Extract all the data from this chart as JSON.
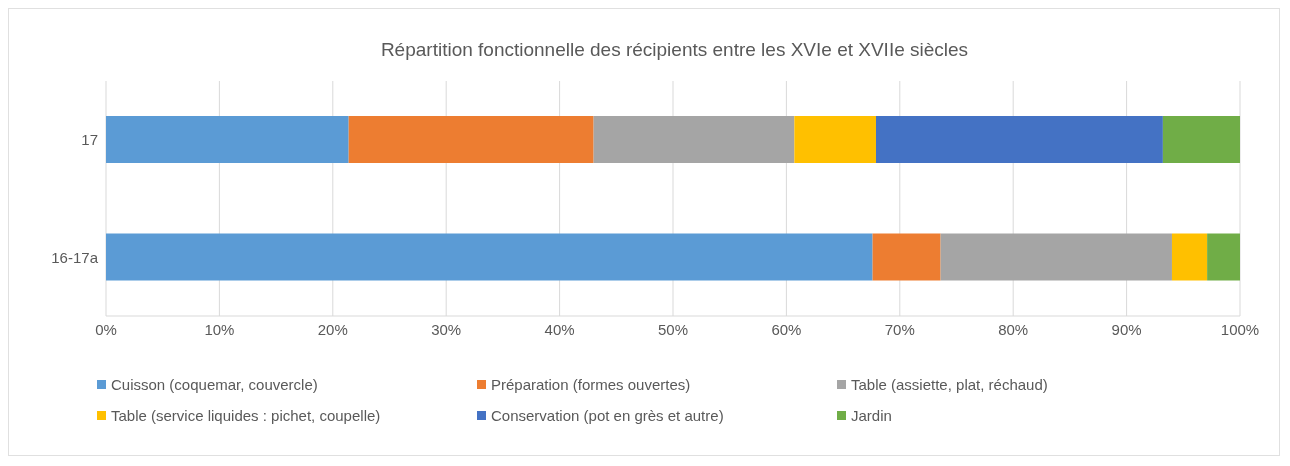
{
  "chart_data": {
    "type": "bar",
    "orientation": "horizontal",
    "stacked": true,
    "title": "Répartition fonctionnelle des récipients entre les XVIe et XVIIe siècles",
    "categories": [
      "17",
      "16-17a"
    ],
    "series": [
      {
        "name": "Cuisson (coquemar, couvercle)",
        "color": "#5b9bd5",
        "values": [
          21.4,
          67.6
        ]
      },
      {
        "name": "Préparation (formes ouvertes)",
        "color": "#ed7d31",
        "values": [
          21.6,
          6.0
        ]
      },
      {
        "name": "Table (assiette, plat, réchaud)",
        "color": "#a5a5a5",
        "values": [
          17.7,
          20.4
        ]
      },
      {
        "name": "Table (service liquides : pichet, coupelle)",
        "color": "#ffc000",
        "values": [
          7.2,
          3.1
        ]
      },
      {
        "name": "Conservation (pot en grès et autre)",
        "color": "#4472c4",
        "values": [
          25.3,
          0
        ]
      },
      {
        "name": "Jardin",
        "color": "#70ad47",
        "values": [
          6.8,
          2.9
        ]
      }
    ],
    "xlim": [
      0,
      100
    ],
    "xticks": [
      {
        "value": 0,
        "label": "0%"
      },
      {
        "value": 10,
        "label": "10%"
      },
      {
        "value": 20,
        "label": "20%"
      },
      {
        "value": 30,
        "label": "30%"
      },
      {
        "value": 40,
        "label": "40%"
      },
      {
        "value": 50,
        "label": "50%"
      },
      {
        "value": 60,
        "label": "60%"
      },
      {
        "value": 70,
        "label": "70%"
      },
      {
        "value": 80,
        "label": "80%"
      },
      {
        "value": 90,
        "label": "90%"
      },
      {
        "value": 100,
        "label": "100%"
      }
    ],
    "grid": "x",
    "legend": "bottom"
  }
}
